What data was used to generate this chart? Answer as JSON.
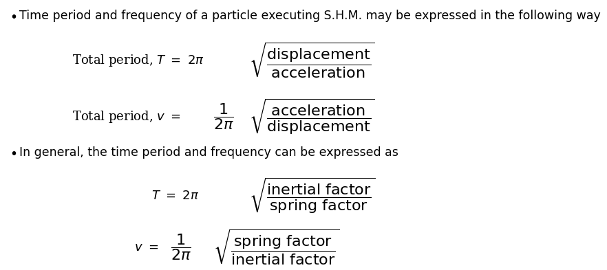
{
  "bg_color": "#ffffff",
  "text_color": "#000000",
  "bullet1": "Time period and frequency of a particle executing S.H.M. may be expressed in the following way",
  "bullet2": "In general, the time period and frequency can be expressed as",
  "eq1": "$T = 2\\pi\\sqrt{\\dfrac{\\mathrm{displacement}}{\\mathrm{acceleration}}}$",
  "eq1_label": "Total period, $T$  $= 2\\pi$",
  "eq2_label": "Total period, $v$  $=$",
  "eq3": "$T = 2\\pi\\sqrt{\\dfrac{\\mathrm{inertial\\ factor}}{\\mathrm{spring\\ factor}}}$",
  "eq4_left": "$v = $",
  "font_size_bullet": 12.5,
  "font_size_eq": 14,
  "font_size_label": 13
}
